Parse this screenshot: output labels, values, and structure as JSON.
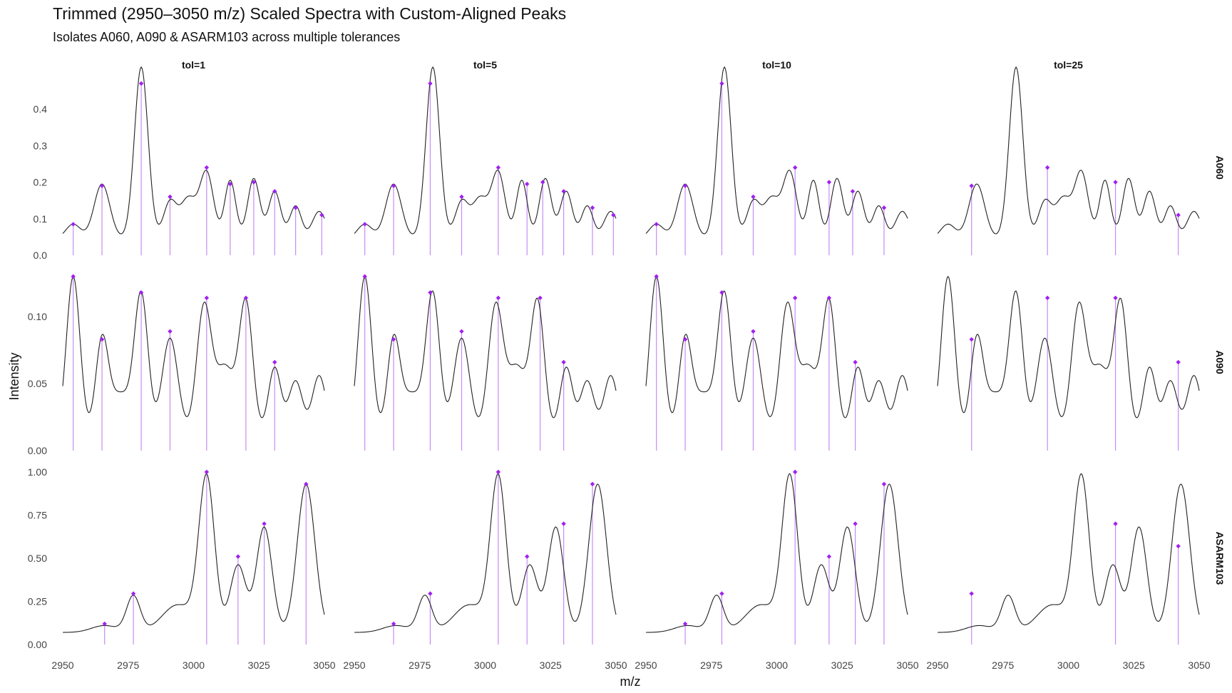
{
  "chart_data": {
    "type": "line",
    "title": "Trimmed (2950–3050 m/z) Scaled Spectra with Custom-Aligned Peaks",
    "subtitle": "Isolates A060, A090 & ASARM103 across multiple tolerances",
    "xlabel": "m/z",
    "ylabel": "Intensity",
    "xlim": [
      2950,
      3050
    ],
    "x_ticks": [
      2950,
      2975,
      3000,
      3025,
      3050
    ],
    "columns": [
      "tol=1",
      "tol=5",
      "tol=10",
      "tol=25"
    ],
    "grid": false,
    "line_color": "#222222",
    "peak_color": "#a020f0",
    "rows": [
      {
        "name": "A060",
        "ylim": [
          0,
          0.48
        ],
        "y_ticks": [
          0.0,
          0.1,
          0.2,
          0.3,
          0.4
        ],
        "y_tick_labels": [
          "0.0",
          "0.1",
          "0.2",
          "0.3",
          "0.4"
        ],
        "baseline": 0.045,
        "spectrum": [
          {
            "x": 2954,
            "y": 0.04,
            "w": 2.8
          },
          {
            "x": 2965,
            "y": 0.15,
            "w": 3.0
          },
          {
            "x": 2980,
            "y": 0.47,
            "w": 2.6
          },
          {
            "x": 2991,
            "y": 0.1,
            "w": 2.5
          },
          {
            "x": 2998,
            "y": 0.11,
            "w": 3.0
          },
          {
            "x": 3005,
            "y": 0.18,
            "w": 2.6
          },
          {
            "x": 3014,
            "y": 0.16,
            "w": 2.1
          },
          {
            "x": 3023,
            "y": 0.165,
            "w": 2.3
          },
          {
            "x": 3031,
            "y": 0.13,
            "w": 2.3
          },
          {
            "x": 3039,
            "y": 0.09,
            "w": 2.2
          },
          {
            "x": 3048,
            "y": 0.075,
            "w": 2.6
          }
        ],
        "peaks": [
          [
            [
              2954,
              0.085
            ],
            [
              2965,
              0.19
            ],
            [
              2980,
              0.47
            ],
            [
              2991,
              0.16
            ],
            [
              3005,
              0.24
            ],
            [
              3014,
              0.195
            ],
            [
              3023,
              0.2
            ],
            [
              3031,
              0.175
            ],
            [
              3039,
              0.13
            ],
            [
              3049,
              0.11
            ]
          ],
          [
            [
              2954,
              0.085
            ],
            [
              2965,
              0.19
            ],
            [
              2979,
              0.47
            ],
            [
              2991,
              0.16
            ],
            [
              3005,
              0.24
            ],
            [
              3016,
              0.195
            ],
            [
              3022,
              0.2
            ],
            [
              3030,
              0.175
            ],
            [
              3041,
              0.13
            ],
            [
              3049,
              0.11
            ]
          ],
          [
            [
              2954,
              0.085
            ],
            [
              2965,
              0.19
            ],
            [
              2979,
              0.47
            ],
            [
              2991,
              0.16
            ],
            [
              3007,
              0.24
            ],
            [
              3020,
              0.2
            ],
            [
              3029,
              0.175
            ],
            [
              3041,
              0.13
            ]
          ],
          [
            [
              2963,
              0.19
            ],
            [
              2992,
              0.24
            ],
            [
              3018,
              0.2
            ],
            [
              3042,
              0.11
            ]
          ]
        ]
      },
      {
        "name": "A090",
        "ylim": [
          0,
          0.132
        ],
        "y_ticks": [
          0.0,
          0.05,
          0.1
        ],
        "y_tick_labels": [
          "0.00",
          "0.05",
          "0.10"
        ],
        "baseline": 0.012,
        "spectrum": [
          {
            "x": 2954,
            "y": 0.118,
            "w": 2.6
          },
          {
            "x": 2965,
            "y": 0.068,
            "w": 2.4
          },
          {
            "x": 2972,
            "y": 0.03,
            "w": 4.0
          },
          {
            "x": 2980,
            "y": 0.103,
            "w": 2.6
          },
          {
            "x": 2991,
            "y": 0.072,
            "w": 3.0
          },
          {
            "x": 3004,
            "y": 0.095,
            "w": 2.8
          },
          {
            "x": 3012,
            "y": 0.05,
            "w": 3.5
          },
          {
            "x": 3020,
            "y": 0.098,
            "w": 2.6
          },
          {
            "x": 3031,
            "y": 0.05,
            "w": 2.4
          },
          {
            "x": 3039,
            "y": 0.04,
            "w": 2.6
          },
          {
            "x": 3048,
            "y": 0.044,
            "w": 2.6
          }
        ],
        "peaks": [
          [
            [
              2954,
              0.13
            ],
            [
              2965,
              0.083
            ],
            [
              2980,
              0.118
            ],
            [
              2991,
              0.089
            ],
            [
              3005,
              0.114
            ],
            [
              3020,
              0.114
            ],
            [
              3031,
              0.066
            ]
          ],
          [
            [
              2954,
              0.13
            ],
            [
              2965,
              0.083
            ],
            [
              2979,
              0.118
            ],
            [
              2991,
              0.089
            ],
            [
              3005,
              0.114
            ],
            [
              3021,
              0.114
            ],
            [
              3030,
              0.066
            ]
          ],
          [
            [
              2954,
              0.13
            ],
            [
              2965,
              0.083
            ],
            [
              2979,
              0.118
            ],
            [
              2991,
              0.089
            ],
            [
              3007,
              0.114
            ],
            [
              3020,
              0.114
            ],
            [
              3030,
              0.066
            ]
          ],
          [
            [
              2963,
              0.083
            ],
            [
              2992,
              0.114
            ],
            [
              3018,
              0.114
            ],
            [
              3042,
              0.066
            ]
          ]
        ]
      },
      {
        "name": "ASARM103",
        "ylim": [
          0,
          1.0
        ],
        "y_ticks": [
          0.0,
          0.25,
          0.5,
          0.75,
          1.0
        ],
        "y_tick_labels": [
          "0.00",
          "0.25",
          "0.50",
          "0.75",
          "1.00"
        ],
        "baseline": 0.07,
        "spectrum": [
          {
            "x": 2966,
            "y": 0.04,
            "w": 5.0
          },
          {
            "x": 2977,
            "y": 0.21,
            "w": 2.6
          },
          {
            "x": 2994,
            "y": 0.16,
            "w": 6.0
          },
          {
            "x": 3005,
            "y": 0.89,
            "w": 3.0
          },
          {
            "x": 3017,
            "y": 0.39,
            "w": 3.0
          },
          {
            "x": 3027,
            "y": 0.61,
            "w": 3.0
          },
          {
            "x": 3043,
            "y": 0.86,
            "w": 3.4
          }
        ],
        "peaks": [
          [
            [
              2966,
              0.12
            ],
            [
              2977,
              0.295
            ],
            [
              3005,
              1.0
            ],
            [
              3017,
              0.51
            ],
            [
              3027,
              0.7
            ],
            [
              3043,
              0.93
            ]
          ],
          [
            [
              2965,
              0.12
            ],
            [
              2979,
              0.295
            ],
            [
              3005,
              1.0
            ],
            [
              3016,
              0.51
            ],
            [
              3030,
              0.7
            ],
            [
              3041,
              0.93
            ]
          ],
          [
            [
              2965,
              0.12
            ],
            [
              2979,
              0.295
            ],
            [
              3007,
              1.0
            ],
            [
              3020,
              0.51
            ],
            [
              3030,
              0.7
            ],
            [
              3041,
              0.93
            ]
          ],
          [
            [
              2963,
              0.295
            ],
            [
              3018,
              0.7
            ],
            [
              3042,
              0.57
            ]
          ]
        ]
      }
    ]
  }
}
